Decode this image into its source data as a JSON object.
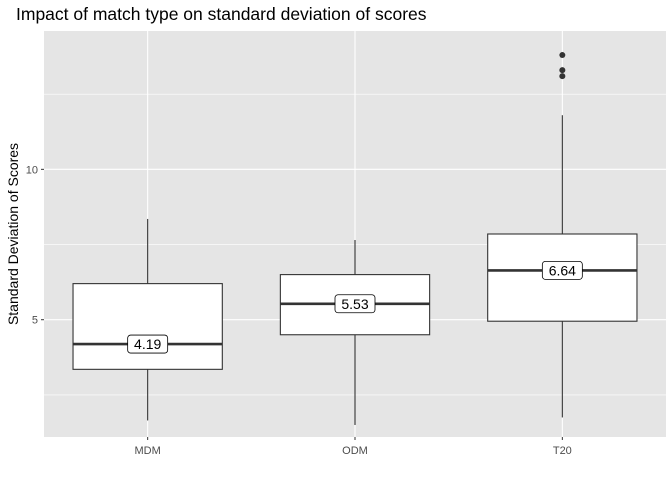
{
  "chart_data": {
    "type": "boxplot",
    "title": "Impact of match type on standard deviation of scores",
    "xlabel": "",
    "ylabel": "Standard Deviation of Scores",
    "categories": [
      "MDM",
      "ODM",
      "T20"
    ],
    "ylim": [
      1.1,
      14.6
    ],
    "y_ticks": [
      5,
      10
    ],
    "y_tick_labels": [
      "5",
      "10"
    ],
    "grid": true,
    "boxes": [
      {
        "category": "MDM",
        "whisker_low": 1.65,
        "q1": 3.35,
        "median": 4.19,
        "q3": 6.2,
        "whisker_high": 8.35,
        "outliers": [],
        "label": "4.19"
      },
      {
        "category": "ODM",
        "whisker_low": 1.5,
        "q1": 4.5,
        "median": 5.53,
        "q3": 6.5,
        "whisker_high": 7.65,
        "outliers": [],
        "label": "5.53"
      },
      {
        "category": "T20",
        "whisker_low": 1.75,
        "q1": 4.95,
        "median": 6.64,
        "q3": 7.85,
        "whisker_high": 11.8,
        "outliers": [
          13.1,
          13.3,
          13.8
        ],
        "label": "6.64"
      }
    ],
    "colors": {
      "panel": "#e5e5e5",
      "grid_major": "#ffffff",
      "box_fill": "#ffffff",
      "box_stroke": "#333333",
      "tick_text": "#4d4d4d"
    }
  }
}
